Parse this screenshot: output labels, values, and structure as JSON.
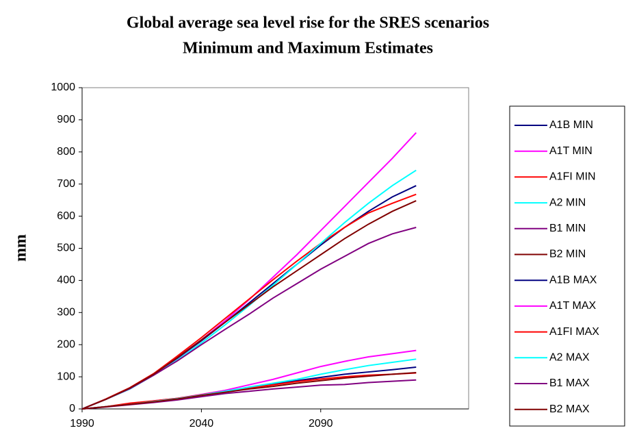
{
  "chart_data": {
    "type": "line",
    "title": "Global average sea level rise for the SRES scenarios",
    "subtitle": "Minimum and Maximum Estimates",
    "ylabel": "mm",
    "x": [
      1990,
      2000,
      2010,
      2020,
      2030,
      2040,
      2050,
      2060,
      2070,
      2080,
      2090,
      2100,
      2110,
      2120,
      2130
    ],
    "xlim": [
      1990,
      2152
    ],
    "xticks": [
      1990,
      2040,
      2090
    ],
    "ylim": [
      0,
      1000
    ],
    "yticks": [
      0,
      100,
      200,
      300,
      400,
      500,
      600,
      700,
      800,
      900,
      1000
    ],
    "grid": false,
    "legend": "right",
    "series": [
      {
        "name": "A1B MIN",
        "color": "#000080",
        "values": [
          0,
          30,
          64,
          108,
          158,
          212,
          270,
          330,
          390,
          450,
          510,
          565,
          615,
          660,
          695
        ]
      },
      {
        "name": "A1T MIN",
        "color": "#ff00ff",
        "values": [
          0,
          30,
          65,
          108,
          160,
          215,
          275,
          340,
          410,
          480,
          555,
          630,
          705,
          780,
          860
        ]
      },
      {
        "name": "A1FI MIN",
        "color": "#ff0000",
        "values": [
          0,
          31,
          66,
          110,
          165,
          222,
          282,
          342,
          402,
          460,
          515,
          565,
          610,
          640,
          668
        ]
      },
      {
        "name": "A2 MIN",
        "color": "#00ffff",
        "values": [
          0,
          30,
          62,
          105,
          152,
          205,
          262,
          322,
          385,
          450,
          515,
          580,
          640,
          695,
          743
        ]
      },
      {
        "name": "B1 MIN",
        "color": "#800080",
        "values": [
          0,
          30,
          63,
          105,
          150,
          200,
          248,
          295,
          345,
          390,
          435,
          475,
          515,
          545,
          565
        ]
      },
      {
        "name": "B2 MIN",
        "color": "#800000",
        "values": [
          0,
          30,
          65,
          108,
          160,
          215,
          270,
          325,
          380,
          430,
          480,
          530,
          575,
          615,
          648
        ]
      },
      {
        "name": "A1B MAX",
        "color": "#000080",
        "values": [
          0,
          7,
          15,
          23,
          32,
          43,
          55,
          66,
          77,
          88,
          98,
          108,
          115,
          122,
          130
        ]
      },
      {
        "name": "A1T MAX",
        "color": "#ff00ff",
        "values": [
          0,
          7,
          15,
          25,
          33,
          45,
          58,
          75,
          92,
          112,
          132,
          148,
          162,
          172,
          182
        ]
      },
      {
        "name": "A1FI MAX",
        "color": "#ff0000",
        "values": [
          0,
          7,
          18,
          25,
          33,
          44,
          55,
          65,
          75,
          85,
          93,
          100,
          105,
          108,
          112
        ]
      },
      {
        "name": "A2 MAX",
        "color": "#00ffff",
        "values": [
          0,
          7,
          14,
          23,
          32,
          43,
          55,
          68,
          80,
          92,
          108,
          122,
          135,
          145,
          155
        ]
      },
      {
        "name": "B1 MAX",
        "color": "#800080",
        "values": [
          0,
          6,
          13,
          20,
          28,
          38,
          48,
          55,
          62,
          68,
          74,
          76,
          82,
          86,
          90
        ]
      },
      {
        "name": "B2 MAX",
        "color": "#800000",
        "values": [
          0,
          7,
          14,
          22,
          31,
          42,
          52,
          62,
          70,
          80,
          88,
          96,
          102,
          108,
          113
        ]
      }
    ]
  }
}
